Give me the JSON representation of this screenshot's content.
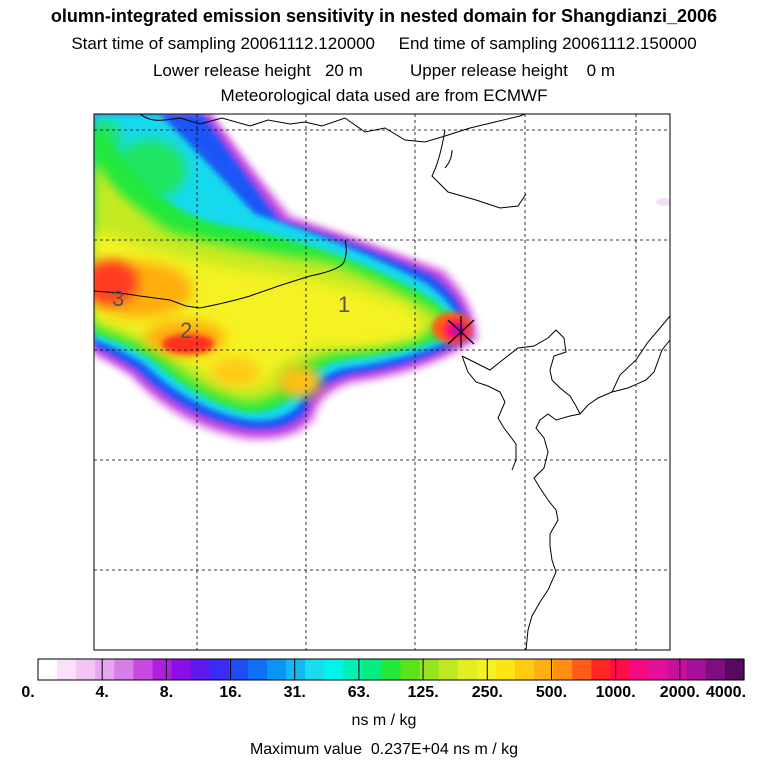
{
  "header": {
    "title": "olumn-integrated emission sensitivity in nested domain for Shangdianzi_2006",
    "sampling": "Start time of sampling 20061112.120000     End time of sampling 20061112.150000",
    "release": "Lower release height   20 m          Upper release height    0 m",
    "meteo": "Meteorological data used are from ECMWF"
  },
  "map": {
    "station_marker": "Shangdianzi station cross marker",
    "contour_labels": [
      "1",
      "2",
      "3"
    ]
  },
  "colorbar": {
    "tick_labels": [
      "0.",
      "4.",
      "8.",
      "16.",
      "31.",
      "63.",
      "125.",
      "250.",
      "500.",
      "1000.",
      "2000.",
      "4000."
    ],
    "colors": [
      "#ffffff",
      "#fbe0fb",
      "#f3c4f5",
      "#e8a6f0",
      "#d97de9",
      "#c84ae2",
      "#b01fe0",
      "#8a0fe6",
      "#5f17f0",
      "#3a2bf5",
      "#1f4bf8",
      "#0e6ff7",
      "#0a95f5",
      "#12b9f3",
      "#1bdcef",
      "#00f5e8",
      "#00f1b3",
      "#05ec80",
      "#22e83c",
      "#5ae21a",
      "#93e41d",
      "#bfe820",
      "#e1ee22",
      "#f4f222",
      "#ffe415",
      "#ffca12",
      "#ffaf10",
      "#ff8e12",
      "#ff5c19",
      "#ff2626",
      "#ff0d4a",
      "#f50a82",
      "#e40f9a",
      "#c90f9f",
      "#a60f98",
      "#7e0d82",
      "#560a5f"
    ],
    "unit": "ns m / kg"
  },
  "footer": {
    "max_value": "Maximum value  0.237E+04 ns m / kg"
  }
}
